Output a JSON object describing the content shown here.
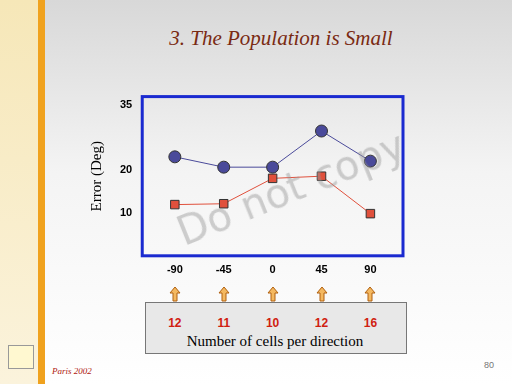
{
  "title": "3. The Population is Small",
  "footer": "Paris 2002",
  "page_number": 80,
  "watermark": "Do not copy",
  "chart_data": {
    "type": "line",
    "y_label": "Error (Deg)",
    "x": [
      -90,
      -45,
      0,
      45,
      90
    ],
    "series": [
      {
        "color": "#4a4a9a",
        "marker": "circle",
        "values": [
          23,
          20.6,
          20.6,
          29,
          22
        ]
      },
      {
        "color": "#e0503c",
        "marker": "square",
        "values": [
          11.9,
          12.1,
          18,
          18.5,
          9.8
        ]
      }
    ],
    "xlim": [
      -120,
      120
    ],
    "xticks": [
      -90,
      -45,
      0,
      45,
      90
    ],
    "ylim": [
      0,
      37
    ],
    "yticks": [
      10,
      20,
      35
    ],
    "grid": false,
    "cells_per_direction": {
      "label": "Number of cells per direction",
      "values": [
        12,
        11,
        10,
        12,
        16
      ]
    }
  }
}
